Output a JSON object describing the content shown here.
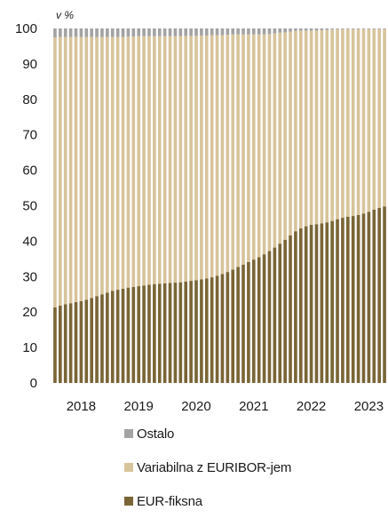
{
  "chart_data": {
    "type": "bar",
    "stacked": true,
    "unit_label": "v %",
    "ylim": [
      0,
      100
    ],
    "yticks": [
      0,
      10,
      20,
      30,
      40,
      50,
      60,
      70,
      80,
      90,
      100
    ],
    "year_labels": [
      "2018",
      "2019",
      "2020",
      "2021",
      "2022",
      "2023"
    ],
    "series": [
      {
        "name": "EUR-fiksna",
        "color": "#7a6536",
        "values": [
          21.3,
          21.8,
          22.2,
          22.5,
          22.8,
          23.1,
          23.5,
          24.0,
          24.5,
          25.0,
          25.5,
          26.0,
          26.3,
          26.6,
          26.9,
          27.1,
          27.3,
          27.5,
          27.7,
          27.9,
          28.0,
          28.1,
          28.2,
          28.3,
          28.4,
          28.6,
          28.8,
          29.0,
          29.2,
          29.5,
          29.8,
          30.2,
          30.7,
          31.3,
          32.0,
          32.7,
          33.4,
          34.1,
          34.8,
          35.5,
          36.3,
          37.2,
          38.2,
          39.3,
          40.4,
          41.6,
          42.8,
          43.6,
          44.2,
          44.6,
          44.8,
          45.0,
          45.3,
          45.7,
          46.2,
          46.6,
          46.9,
          47.1,
          47.4,
          47.8,
          48.3,
          48.9,
          49.4,
          49.8
        ]
      },
      {
        "name": "Variabilna z EURIBOR-jem",
        "color": "#d8c49b",
        "values": [
          76.2,
          75.8,
          75.4,
          75.1,
          74.8,
          74.5,
          74.1,
          73.6,
          73.1,
          72.6,
          72.1,
          71.6,
          71.3,
          71.0,
          70.8,
          70.6,
          70.5,
          70.3,
          70.1,
          69.9,
          69.8,
          69.7,
          69.6,
          69.5,
          69.4,
          69.3,
          69.1,
          68.9,
          68.8,
          68.5,
          68.3,
          67.9,
          67.4,
          66.9,
          66.3,
          65.6,
          64.9,
          64.2,
          63.5,
          62.8,
          62.0,
          61.2,
          60.4,
          59.5,
          58.5,
          57.5,
          56.5,
          55.8,
          55.2,
          54.8,
          54.6,
          54.5,
          54.3,
          54.0,
          53.6,
          53.2,
          52.9,
          52.7,
          52.4,
          52.0,
          51.5,
          50.9,
          50.4,
          50.0
        ]
      },
      {
        "name": "Ostalo",
        "color": "#a3a3a3",
        "values": [
          2.5,
          2.4,
          2.4,
          2.4,
          2.4,
          2.4,
          2.4,
          2.4,
          2.4,
          2.4,
          2.4,
          2.4,
          2.4,
          2.4,
          2.3,
          2.3,
          2.2,
          2.2,
          2.2,
          2.2,
          2.2,
          2.2,
          2.2,
          2.2,
          2.2,
          2.1,
          2.1,
          2.1,
          2.0,
          2.0,
          1.9,
          1.9,
          1.9,
          1.8,
          1.7,
          1.7,
          1.7,
          1.7,
          1.7,
          1.7,
          1.7,
          1.6,
          1.4,
          1.2,
          1.1,
          0.9,
          0.7,
          0.6,
          0.6,
          0.6,
          0.6,
          0.5,
          0.4,
          0.3,
          0.2,
          0.2,
          0.2,
          0.2,
          0.2,
          0.2,
          0.2,
          0.2,
          0.2,
          0.2
        ]
      }
    ],
    "legend_order": [
      "Ostalo",
      "Variabilna z EURIBOR-jem",
      "EUR-fiksna"
    ],
    "legend_placement": "bottom",
    "grid": false
  }
}
